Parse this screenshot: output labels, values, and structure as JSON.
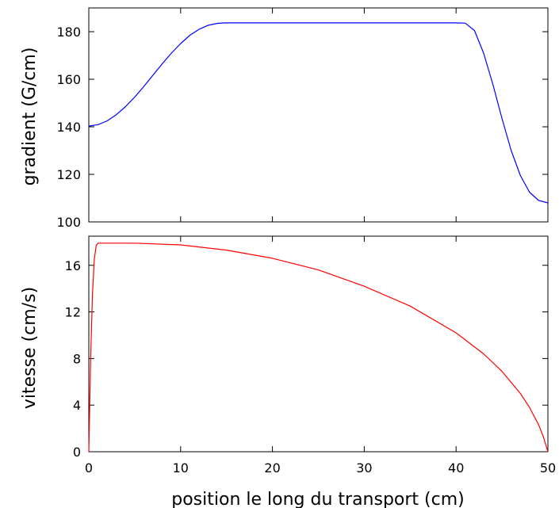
{
  "chart_data": [
    {
      "type": "line",
      "title": "",
      "xlabel": "",
      "ylabel": "gradient (G/cm)",
      "xlim": [
        0,
        50
      ],
      "ylim": [
        100,
        190
      ],
      "xticks": [
        0,
        10,
        20,
        30,
        40,
        50
      ],
      "xtick_labels_shown": false,
      "yticks": [
        100,
        120,
        140,
        160,
        180
      ],
      "grid": false,
      "legend": "none",
      "series": [
        {
          "color": "#0000ff",
          "x": [
            0,
            1,
            2,
            3,
            4,
            5,
            6,
            7,
            8,
            9,
            10,
            11,
            12,
            13,
            14,
            14.8,
            20,
            25,
            30,
            35,
            40,
            41,
            42,
            43,
            44,
            45,
            46,
            47,
            48,
            49,
            50
          ],
          "y": [
            140.3,
            140.9,
            142.5,
            145.1,
            148.5,
            152.5,
            157.0,
            161.8,
            166.5,
            171.0,
            175.0,
            178.5,
            181.0,
            182.7,
            183.5,
            183.7,
            183.7,
            183.7,
            183.7,
            183.7,
            183.7,
            183.6,
            180.5,
            171.0,
            158.0,
            143.5,
            130.0,
            119.5,
            112.5,
            109.0,
            108.0
          ]
        }
      ]
    },
    {
      "type": "line",
      "title": "",
      "xlabel": "position le long du transport (cm)",
      "ylabel": "vitesse (cm/s)",
      "xlim": [
        0,
        50
      ],
      "ylim": [
        0,
        18.5
      ],
      "xticks": [
        0,
        10,
        20,
        30,
        40,
        50
      ],
      "yticks": [
        0,
        4,
        8,
        12,
        16
      ],
      "grid": false,
      "legend": "none",
      "series": [
        {
          "color": "#ff0000",
          "x": [
            0,
            0.2,
            0.4,
            0.6,
            0.8,
            1.0,
            5,
            10,
            15,
            20,
            25,
            30,
            35,
            40,
            43,
            45,
            47,
            48,
            49,
            49.5,
            50
          ],
          "y": [
            0,
            8.0,
            13.5,
            16.5,
            17.7,
            17.9,
            17.9,
            17.75,
            17.3,
            16.6,
            15.6,
            14.2,
            12.5,
            10.2,
            8.4,
            6.9,
            5.0,
            3.8,
            2.3,
            1.3,
            0
          ]
        }
      ]
    }
  ]
}
